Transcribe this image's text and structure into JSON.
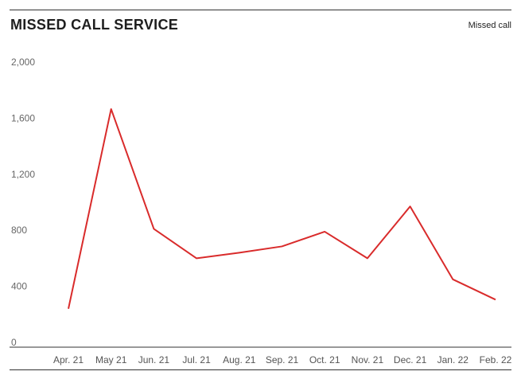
{
  "title": "MISSED CALL SERVICE",
  "legend_label": "Missed call",
  "chart_data": {
    "type": "line",
    "title": "MISSED CALL SERVICE",
    "categories": [
      "Apr. 21",
      "May 21",
      "Jun. 21",
      "Jul. 21",
      "Aug. 21",
      "Sep. 21",
      "Oct. 21",
      "Nov. 21",
      "Dec. 21",
      "Jan. 22",
      "Feb. 22"
    ],
    "series": [
      {
        "name": "Missed call",
        "color": "#d92b2b",
        "values": [
          240,
          1665,
          810,
          600,
          640,
          685,
          790,
          600,
          970,
          450,
          305
        ]
      }
    ],
    "yticks": [
      0,
      400,
      800,
      1200,
      1600,
      2000
    ],
    "ytick_labels": [
      "0",
      "400",
      "800",
      "1,200",
      "1,600",
      "2,000"
    ],
    "ylim": [
      0,
      2000
    ],
    "xlabel": "",
    "ylabel": "",
    "grid": false,
    "legend_position": "top-right"
  }
}
